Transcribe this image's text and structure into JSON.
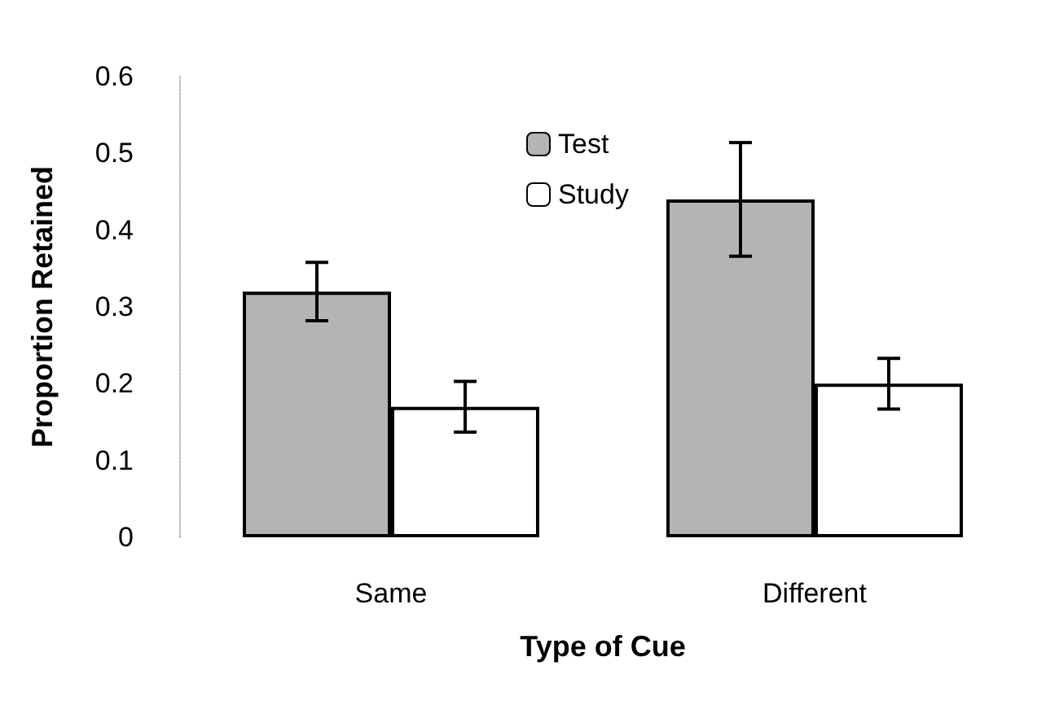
{
  "chart_data": {
    "type": "bar",
    "xlabel": "Type of Cue",
    "ylabel": "Proportion Retained",
    "categories": [
      "Same",
      "Different"
    ],
    "series": [
      {
        "name": "Test",
        "color": "#b4b4b4",
        "values": [
          0.32,
          0.44
        ],
        "errors": [
          0.038,
          0.074
        ]
      },
      {
        "name": "Study",
        "color": "#ffffff",
        "values": [
          0.17,
          0.2
        ],
        "errors": [
          0.033,
          0.033
        ]
      }
    ],
    "ylim": [
      0,
      0.6
    ],
    "yticks": [
      0,
      0.1,
      0.2,
      0.3,
      0.4,
      0.5,
      0.6
    ],
    "grid": false,
    "legend": "top"
  }
}
